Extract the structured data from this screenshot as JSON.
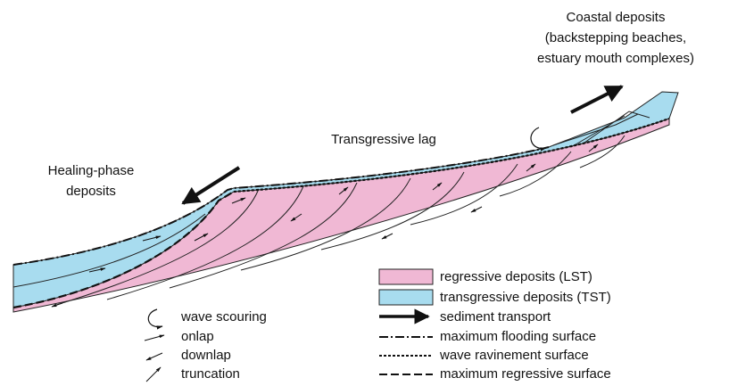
{
  "labels": {
    "coastal_deposits": [
      "Coastal deposits",
      "(backstepping beaches,",
      "estuary mouth complexes)"
    ],
    "transgressive_lag": "Transgressive lag",
    "healing_phase": [
      "Healing-phase",
      "deposits"
    ]
  },
  "legend": [
    "regressive deposits (LST)",
    "transgressive deposits (TST)",
    "sediment transport",
    "maximum flooding surface",
    "wave ravinement surface",
    "maximum regressive surface"
  ],
  "symbols": [
    "wave scouring",
    "onlap",
    "downlap",
    "truncation"
  ]
}
